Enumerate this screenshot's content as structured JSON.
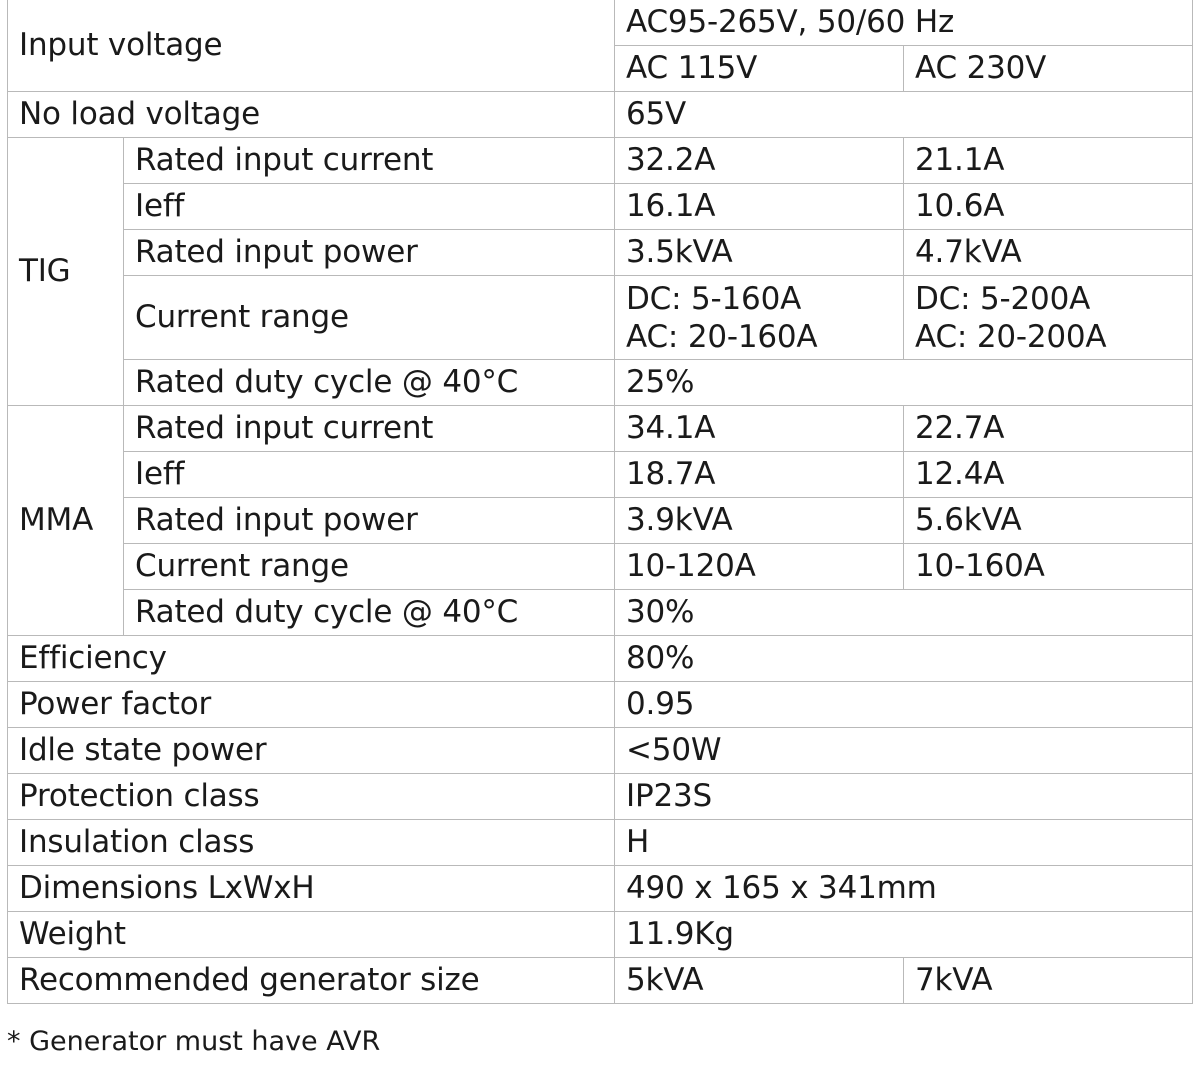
{
  "rows": {
    "input_voltage": {
      "label": "Input voltage",
      "range": "AC95-265V, 50/60 Hz",
      "col_a": "AC 115V",
      "col_b": "AC 230V"
    },
    "no_load_voltage": {
      "label": "No load voltage",
      "value": "65V"
    },
    "tig": {
      "label": "TIG",
      "rated_input_current": {
        "label": "Rated input current",
        "a": "32.2A",
        "b": "21.1A"
      },
      "ieff": {
        "label": "Ieff",
        "a": "16.1A",
        "b": "10.6A"
      },
      "rated_input_power": {
        "label": "Rated input power",
        "a": "3.5kVA",
        "b": "4.7kVA"
      },
      "current_range": {
        "label": "Current range",
        "a_dc": "DC: 5-160A",
        "a_ac": "AC: 20-160A",
        "b_dc": "DC: 5-200A",
        "b_ac": "AC: 20-200A"
      },
      "duty_cycle": {
        "label": "Rated duty cycle @ 40°C",
        "value": "25%"
      }
    },
    "mma": {
      "label": "MMA",
      "rated_input_current": {
        "label": "Rated input current",
        "a": "34.1A",
        "b": "22.7A"
      },
      "ieff": {
        "label": "Ieff",
        "a": "18.7A",
        "b": "12.4A"
      },
      "rated_input_power": {
        "label": "Rated input power",
        "a": "3.9kVA",
        "b": "5.6kVA"
      },
      "current_range": {
        "label": "Current range",
        "a": "10-120A",
        "b": "10-160A"
      },
      "duty_cycle": {
        "label": "Rated duty cycle @ 40°C",
        "value": "30%"
      }
    },
    "efficiency": {
      "label": "Efficiency",
      "value": "80%"
    },
    "power_factor": {
      "label": "Power factor",
      "value": "0.95"
    },
    "idle_state_power": {
      "label": "Idle state power",
      "value": "<50W"
    },
    "protection_class": {
      "label": "Protection class",
      "value": "IP23S"
    },
    "insulation_class": {
      "label": "Insulation class",
      "value": "H"
    },
    "dimensions": {
      "label": "Dimensions LxWxH",
      "value": "490 x 165 x 341mm"
    },
    "weight": {
      "label": "Weight",
      "value": "11.9Kg"
    },
    "generator": {
      "label": "Recommended generator size",
      "a": "5kVA",
      "b": "7kVA"
    }
  },
  "footnote": "* Generator must have AVR"
}
